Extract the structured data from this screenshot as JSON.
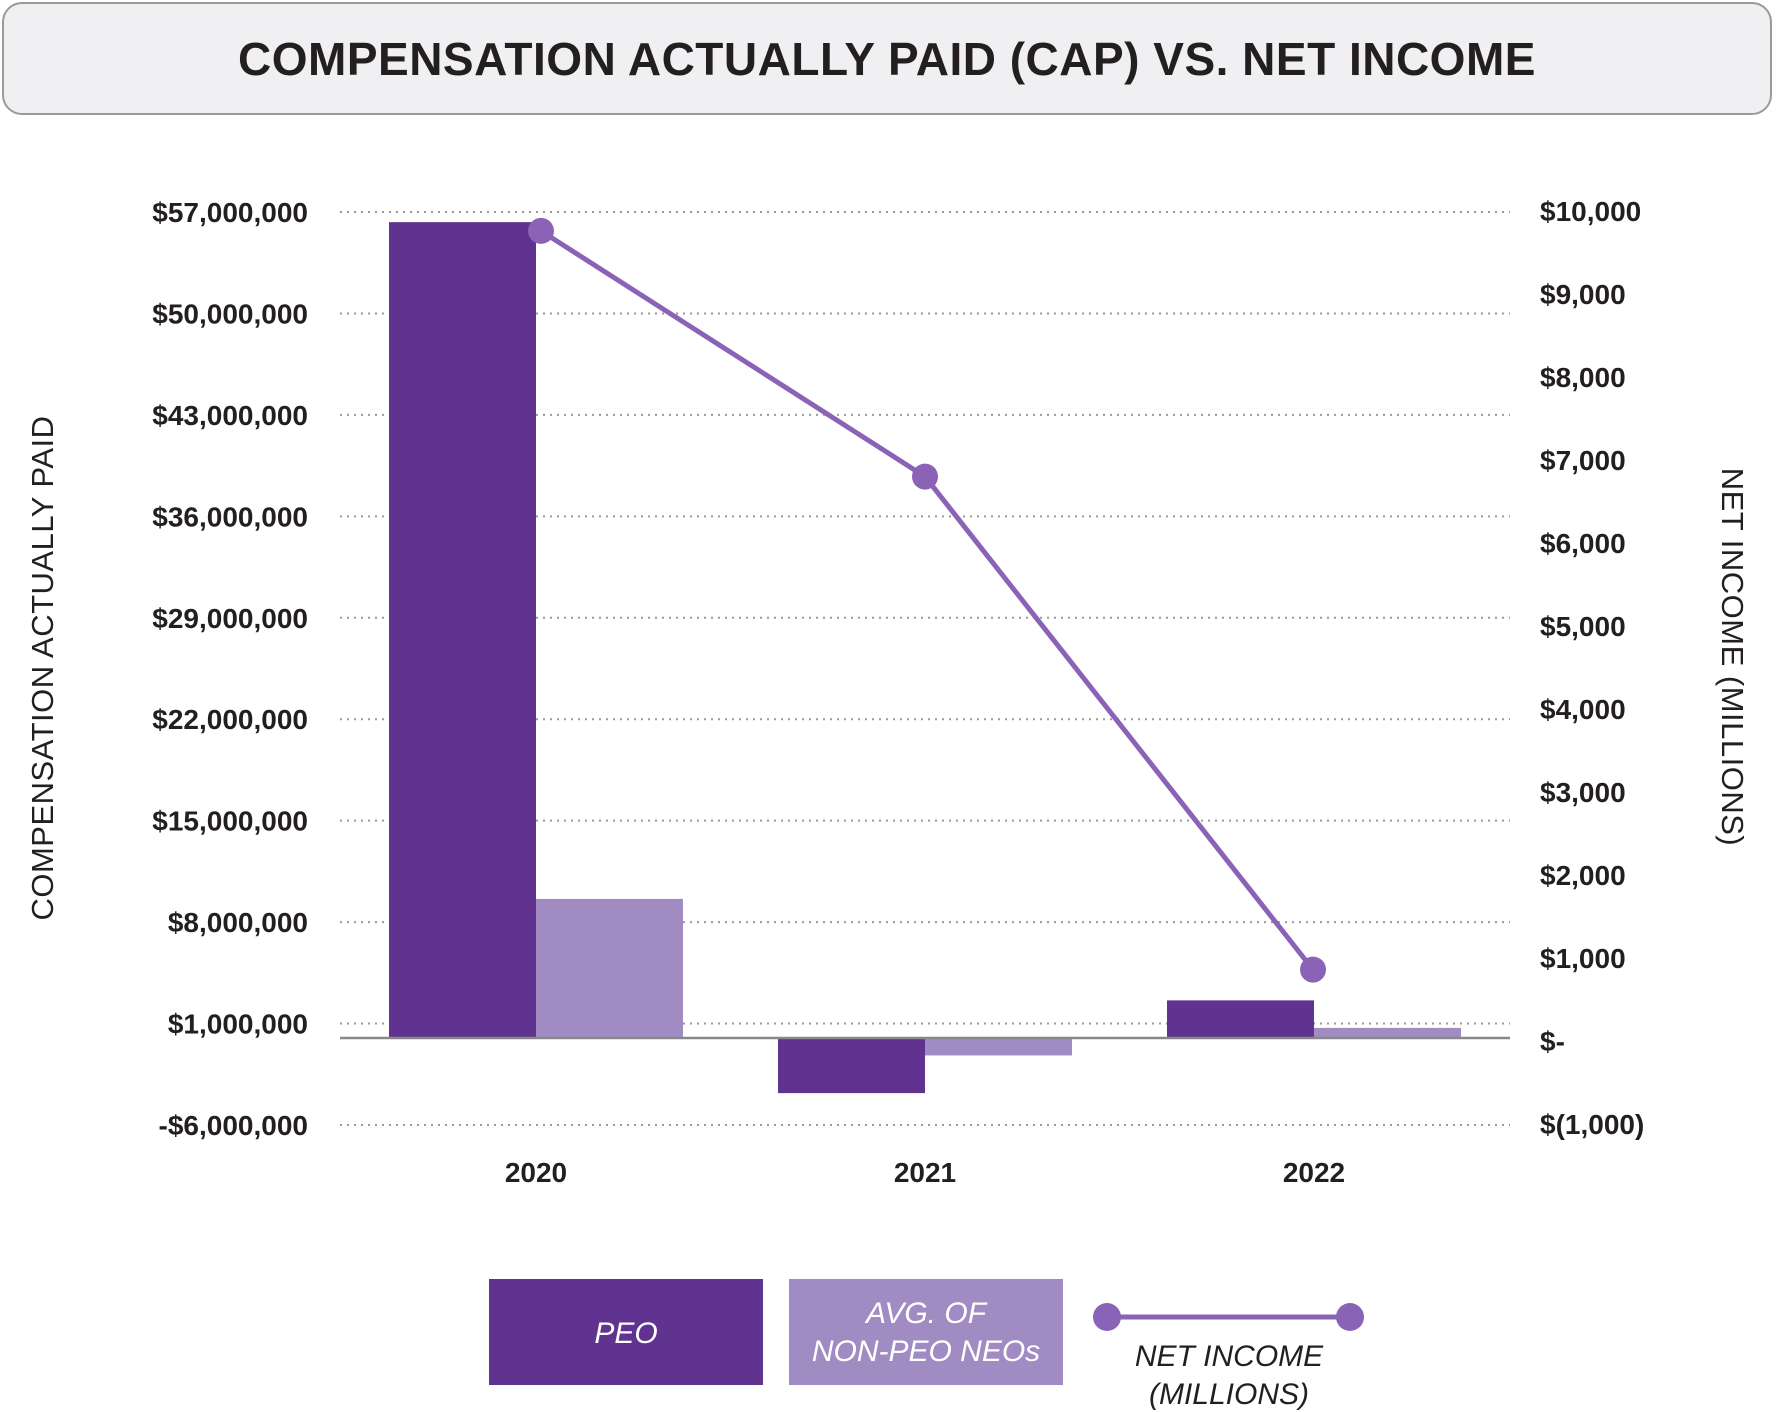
{
  "title": "COMPENSATION ACTUALLY PAID (CAP) VS. NET INCOME",
  "colors": {
    "peo": "#613391",
    "neo": "#a08bc3",
    "line": "#8a62b6",
    "grid": "#9a9a9a",
    "baseline": "#888888"
  },
  "chart_data": {
    "type": "bar",
    "categories": [
      "2020",
      "2021",
      "2022"
    ],
    "series": [
      {
        "name": "PEO",
        "axis": "left",
        "values": [
          56300000,
          -3800000,
          2600000
        ]
      },
      {
        "name": "AVG. OF NON-PEO NEOs",
        "axis": "left",
        "values": [
          9600000,
          -1200000,
          700000
        ]
      }
    ],
    "line_series": {
      "name": "NET INCOME (MILLIONS)",
      "axis": "right",
      "values": [
        9760,
        6800,
        860
      ]
    },
    "left_axis": {
      "label": "COMPENSATION ACTUALLY PAID",
      "ylim": [
        -6000000,
        57000000
      ],
      "ticks": [
        {
          "value": 57000000,
          "label": "$57,000,000"
        },
        {
          "value": 50000000,
          "label": "$50,000,000"
        },
        {
          "value": 43000000,
          "label": "$43,000,000"
        },
        {
          "value": 36000000,
          "label": "$36,000,000"
        },
        {
          "value": 29000000,
          "label": "$29,000,000"
        },
        {
          "value": 22000000,
          "label": "$22,000,000"
        },
        {
          "value": 15000000,
          "label": "$15,000,000"
        },
        {
          "value": 8000000,
          "label": "$8,000,000"
        },
        {
          "value": 1000000,
          "label": "$1,000,000"
        },
        {
          "value": -6000000,
          "label": "-$6,000,000"
        }
      ]
    },
    "right_axis": {
      "label": "NET INCOME (MILLIONS)",
      "ylim": [
        -1000,
        10000
      ],
      "ticks": [
        {
          "value": 10000,
          "label": "$10,000"
        },
        {
          "value": 9000,
          "label": "$9,000"
        },
        {
          "value": 8000,
          "label": "$8,000"
        },
        {
          "value": 7000,
          "label": "$7,000"
        },
        {
          "value": 6000,
          "label": "$6,000"
        },
        {
          "value": 5000,
          "label": "$5,000"
        },
        {
          "value": 4000,
          "label": "$4,000"
        },
        {
          "value": 3000,
          "label": "$3,000"
        },
        {
          "value": 2000,
          "label": "$2,000"
        },
        {
          "value": 1000,
          "label": "$1,000"
        },
        {
          "value": 0,
          "label": "$-"
        },
        {
          "value": -1000,
          "label": "$(1,000)"
        }
      ]
    },
    "grid": "dotted horizontal",
    "legend": {
      "position": "bottom-center",
      "items": [
        {
          "type": "box",
          "series": "peo",
          "lines": [
            "PEO"
          ]
        },
        {
          "type": "box",
          "series": "neo",
          "lines": [
            "AVG. OF",
            "NON-PEO NEOs"
          ]
        },
        {
          "type": "line",
          "series": "line",
          "lines": [
            "NET INCOME",
            "(MILLIONS)"
          ]
        }
      ]
    }
  }
}
